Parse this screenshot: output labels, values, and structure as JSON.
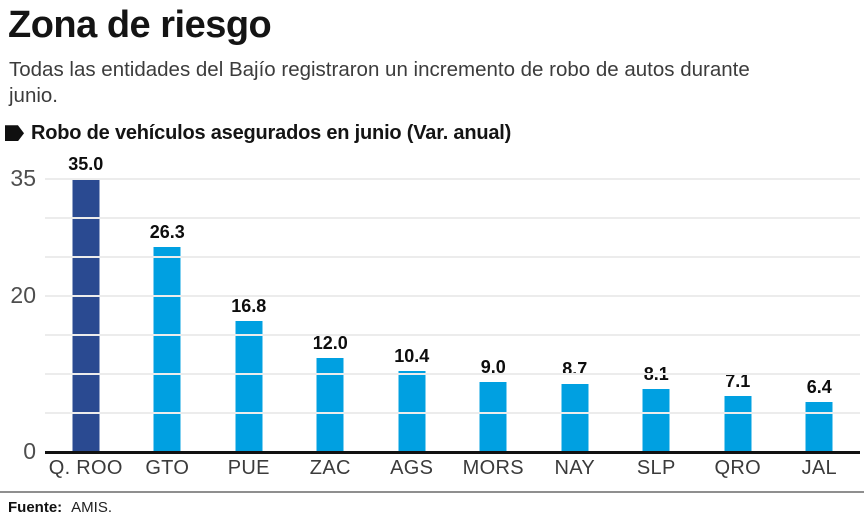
{
  "header": {
    "title": "Zona de riesgo",
    "subtitle": "Todas las entidades del Bajío registraron un incremento de robo de autos durante junio."
  },
  "chart_data": {
    "type": "bar",
    "title": "Robo de vehículos asegurados en junio (Var. anual)",
    "categories": [
      "Q. ROO",
      "GTO",
      "PUE",
      "ZAC",
      "AGS",
      "MORS",
      "NAY",
      "SLP",
      "QRO",
      "JAL"
    ],
    "values": [
      35.0,
      26.3,
      16.8,
      12.0,
      10.4,
      9.0,
      8.7,
      8.1,
      7.1,
      6.4
    ],
    "value_labels": [
      "35.0",
      "26.3",
      "16.8",
      "12.0",
      "10.4",
      "9.0",
      "8.7",
      "8.1",
      "7.1",
      "6.4"
    ],
    "xlabel": "",
    "ylabel": "",
    "ylim": [
      0,
      35
    ],
    "grid": true,
    "grid_step": 5,
    "labeled_ticks": [
      35,
      20,
      0
    ],
    "legend": false,
    "highlight_index": 0,
    "colors": {
      "highlight_bar": "#2a4a91",
      "bar": "#00a0e1",
      "gridline": "#ececec",
      "baseline": "#121212"
    }
  },
  "footer": {
    "source_label": "Fuente:",
    "source_value": "AMIS."
  }
}
